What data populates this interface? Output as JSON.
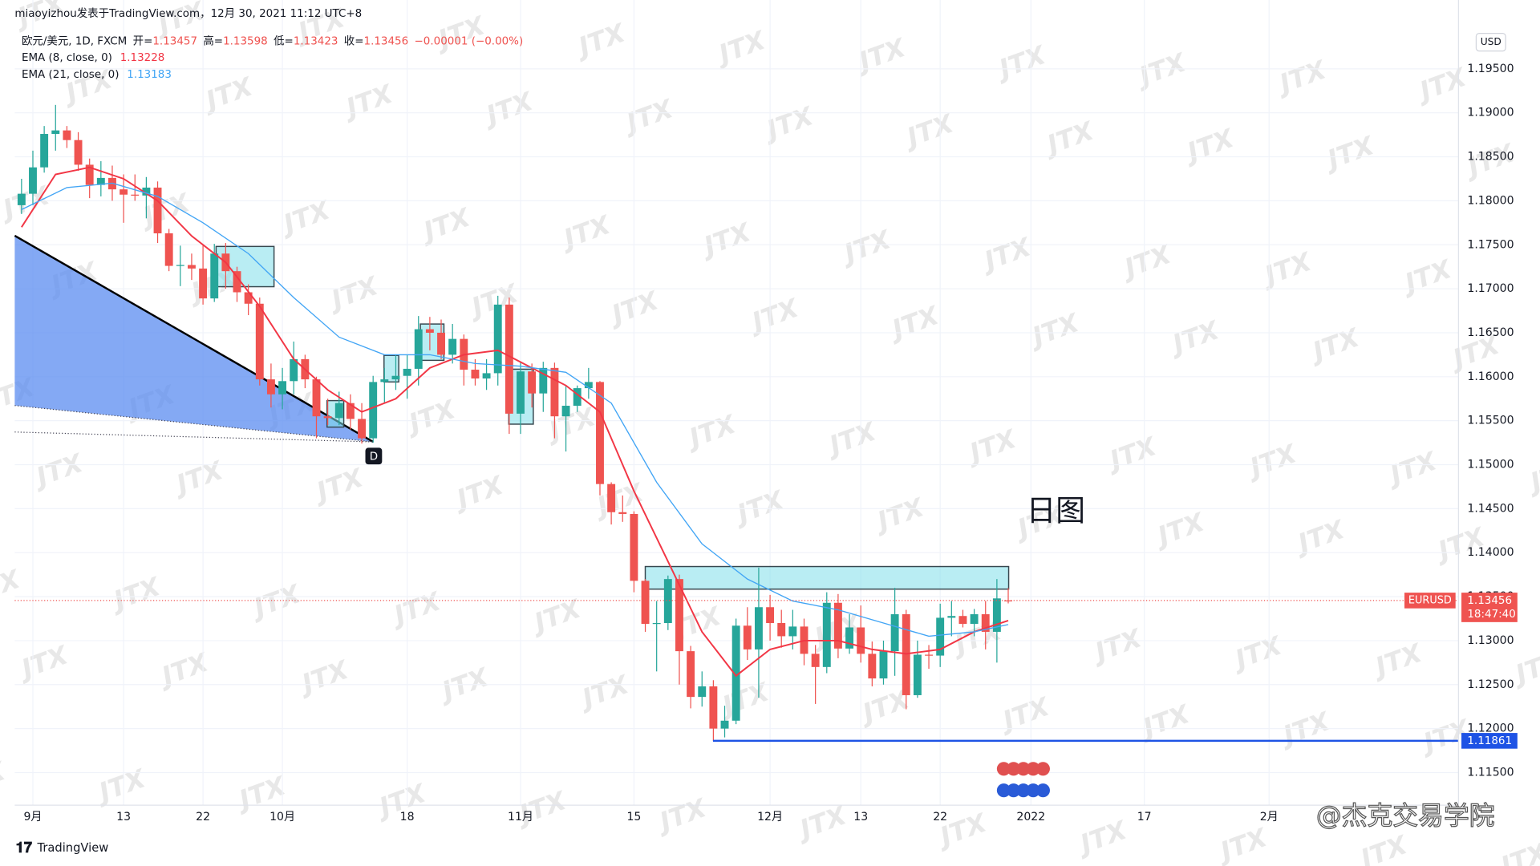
{
  "header": {
    "attribution": "miaoyizhou发表于TradingView.com，12月 30, 2021 11:12 UTC+8",
    "brand": "TradingView",
    "watermark": "JTX",
    "signature": "@杰克交易学院",
    "annotation": "日图",
    "marker": "D",
    "currency": "USD"
  },
  "chart_data": {
    "type": "candlestick",
    "symbol": "EURUSD",
    "legend": {
      "title": "欧元/美元, 1D, FXCM",
      "open_label": "开=",
      "high_label": "高=",
      "low_label": "低=",
      "close_label": "收=",
      "change": "−0.00001 (−0.00%)"
    },
    "countdown": "18:47:40",
    "up_color": "#26a69a",
    "down_color": "#ef5350",
    "x": [
      0,
      1,
      2,
      3,
      4,
      5,
      6,
      7,
      8,
      9,
      10,
      11,
      12,
      13,
      14,
      15,
      16,
      17,
      18,
      19,
      20,
      21,
      22,
      23,
      24,
      25,
      26,
      27,
      28,
      29,
      30,
      31,
      32,
      33,
      34,
      35,
      36,
      37,
      38,
      39,
      40,
      41,
      42,
      43,
      44,
      45,
      46,
      47,
      48,
      49,
      50,
      51,
      52,
      53,
      54,
      55,
      56,
      57,
      58,
      59,
      60,
      61,
      62,
      63,
      64,
      65,
      66,
      67,
      68,
      69,
      70,
      71,
      72,
      73,
      74,
      75,
      76,
      77,
      78,
      79,
      80,
      81,
      82,
      83,
      84,
      85,
      86,
      87
    ],
    "open": [
      1.1795,
      1.1808,
      1.1838,
      1.1876,
      1.188,
      1.1869,
      1.1841,
      1.1818,
      1.1826,
      1.1813,
      1.1807,
      1.1806,
      1.1815,
      1.1763,
      1.1726,
      1.1727,
      1.1723,
      1.1689,
      1.174,
      1.172,
      1.1696,
      1.1683,
      1.1597,
      1.158,
      1.1595,
      1.162,
      1.1597,
      1.1555,
      1.1553,
      1.157,
      1.1552,
      1.153,
      1.1594,
      1.1597,
      1.1601,
      1.1609,
      1.1654,
      1.165,
      1.1625,
      1.1643,
      1.1608,
      1.1598,
      1.1604,
      1.1682,
      1.1558,
      1.1606,
      1.1581,
      1.161,
      1.1555,
      1.1567,
      1.1587,
      1.1594,
      1.1478,
      1.1446,
      1.1444,
      1.1368,
      1.1319,
      1.132,
      1.137,
      1.1288,
      1.1236,
      1.1248,
      1.12,
      1.1209,
      1.1317,
      1.129,
      1.1338,
      1.132,
      1.1305,
      1.1316,
      1.1285,
      1.127,
      1.1343,
      1.1291,
      1.1315,
      1.1285,
      1.1257,
      1.1288,
      1.133,
      1.1238,
      1.1284,
      1.1283,
      1.1326,
      1.1328,
      1.1319,
      1.133,
      1.131,
      1.13457
    ],
    "high": [
      1.1825,
      1.1857,
      1.1885,
      1.1909,
      1.1885,
      1.1878,
      1.1848,
      1.1845,
      1.184,
      1.183,
      1.183,
      1.1827,
      1.1822,
      1.1768,
      1.1749,
      1.174,
      1.175,
      1.1751,
      1.1752,
      1.1725,
      1.1705,
      1.169,
      1.1615,
      1.161,
      1.164,
      1.1625,
      1.16,
      1.1575,
      1.1583,
      1.158,
      1.157,
      1.1601,
      1.161,
      1.1625,
      1.1625,
      1.1669,
      1.1668,
      1.1665,
      1.166,
      1.1648,
      1.162,
      1.162,
      1.1692,
      1.169,
      1.1617,
      1.1615,
      1.1617,
      1.1616,
      1.159,
      1.159,
      1.161,
      1.1595,
      1.148,
      1.1465,
      1.1447,
      1.137,
      1.1345,
      1.1374,
      1.1375,
      1.1294,
      1.1265,
      1.1255,
      1.1226,
      1.1325,
      1.1338,
      1.1383,
      1.1352,
      1.1335,
      1.1335,
      1.1325,
      1.1295,
      1.1355,
      1.1353,
      1.133,
      1.134,
      1.1299,
      1.13,
      1.136,
      1.1335,
      1.13,
      1.1295,
      1.1342,
      1.1345,
      1.1335,
      1.1336,
      1.1345,
      1.137,
      1.13598
    ],
    "low": [
      1.1785,
      1.1795,
      1.1832,
      1.1857,
      1.186,
      1.1834,
      1.1803,
      1.1805,
      1.18,
      1.1775,
      1.18,
      1.178,
      1.1752,
      1.172,
      1.1703,
      1.171,
      1.1682,
      1.1685,
      1.17,
      1.1685,
      1.167,
      1.159,
      1.1565,
      1.1563,
      1.158,
      1.1587,
      1.153,
      1.1545,
      1.1545,
      1.154,
      1.1524,
      1.1525,
      1.157,
      1.1585,
      1.1575,
      1.159,
      1.163,
      1.162,
      1.1615,
      1.159,
      1.159,
      1.1585,
      1.159,
      1.1535,
      1.1535,
      1.1565,
      1.156,
      1.153,
      1.1515,
      1.156,
      1.1575,
      1.1465,
      1.1432,
      1.1435,
      1.1355,
      1.131,
      1.1265,
      1.1312,
      1.125,
      1.1223,
      1.1225,
      1.1186,
      1.119,
      1.1205,
      1.1278,
      1.1235,
      1.13,
      1.1292,
      1.129,
      1.1272,
      1.1228,
      1.1263,
      1.128,
      1.1285,
      1.1275,
      1.1248,
      1.125,
      1.126,
      1.1222,
      1.1235,
      1.1268,
      1.127,
      1.1305,
      1.1315,
      1.1305,
      1.129,
      1.1275,
      1.13423
    ],
    "close": [
      1.1808,
      1.1838,
      1.1876,
      1.188,
      1.1869,
      1.1841,
      1.1818,
      1.1826,
      1.1813,
      1.1807,
      1.1806,
      1.1815,
      1.1763,
      1.1726,
      1.1727,
      1.1723,
      1.1689,
      1.174,
      1.172,
      1.1696,
      1.1683,
      1.1597,
      1.158,
      1.1595,
      1.162,
      1.1597,
      1.1555,
      1.1553,
      1.157,
      1.1552,
      1.153,
      1.1594,
      1.1597,
      1.1601,
      1.1609,
      1.1654,
      1.165,
      1.1625,
      1.1643,
      1.1608,
      1.1598,
      1.1604,
      1.1682,
      1.1558,
      1.1606,
      1.1581,
      1.161,
      1.1555,
      1.1567,
      1.1587,
      1.1594,
      1.1478,
      1.1446,
      1.1444,
      1.1368,
      1.1319,
      1.132,
      1.137,
      1.1288,
      1.1236,
      1.1248,
      1.12,
      1.1209,
      1.1317,
      1.129,
      1.1338,
      1.132,
      1.1305,
      1.1316,
      1.1285,
      1.127,
      1.1343,
      1.1291,
      1.1315,
      1.1285,
      1.1257,
      1.1288,
      1.133,
      1.1238,
      1.1284,
      1.1283,
      1.1326,
      1.1328,
      1.1319,
      1.133,
      1.131,
      1.1348,
      1.13456
    ],
    "series": [
      {
        "name": "EMA (8, close, 0)",
        "color": "#f23645",
        "x": [
          0,
          3,
          6,
          9,
          12,
          15,
          18,
          21,
          24,
          27,
          30,
          33,
          36,
          39,
          42,
          45,
          48,
          51,
          54,
          57,
          60,
          63,
          66,
          69,
          72,
          75,
          78,
          81,
          84,
          87
        ],
        "values": [
          1.177,
          1.183,
          1.1838,
          1.1825,
          1.18,
          1.176,
          1.173,
          1.168,
          1.162,
          1.1585,
          1.156,
          1.1575,
          1.161,
          1.1625,
          1.163,
          1.161,
          1.159,
          1.156,
          1.147,
          1.139,
          1.131,
          1.126,
          1.129,
          1.13,
          1.13,
          1.129,
          1.1285,
          1.129,
          1.131,
          1.13228
        ]
      },
      {
        "name": "EMA (21, close, 0)",
        "color": "#42a5f5",
        "x": [
          0,
          4,
          8,
          12,
          16,
          20,
          24,
          28,
          32,
          36,
          40,
          44,
          48,
          52,
          56,
          60,
          64,
          68,
          72,
          76,
          80,
          84,
          87
        ],
        "values": [
          1.179,
          1.1815,
          1.182,
          1.1805,
          1.1775,
          1.174,
          1.169,
          1.1645,
          1.1625,
          1.1625,
          1.1615,
          1.1612,
          1.1605,
          1.157,
          1.148,
          1.141,
          1.137,
          1.1345,
          1.1335,
          1.132,
          1.1305,
          1.131,
          1.13183
        ]
      }
    ],
    "support": {
      "value": 1.11861,
      "color": "#1e53e5"
    },
    "xlim": [
      -0.6,
      126.7
    ],
    "xticks": [
      {
        "value": 1,
        "label": "9月"
      },
      {
        "value": 9,
        "label": "13"
      },
      {
        "value": 16,
        "label": "22"
      },
      {
        "value": 23,
        "label": "10月"
      },
      {
        "value": 34,
        "label": "18"
      },
      {
        "value": 44,
        "label": "11月"
      },
      {
        "value": 54,
        "label": "15"
      },
      {
        "value": 66,
        "label": "12月"
      },
      {
        "value": 74,
        "label": "13"
      },
      {
        "value": 81,
        "label": "22"
      },
      {
        "value": 89,
        "label": "2022"
      },
      {
        "value": 99,
        "label": "17"
      },
      {
        "value": 110,
        "label": "2月"
      }
    ],
    "ylim": [
      1.1113,
      1.1997
    ],
    "yticks": [
      {
        "value": 1.115,
        "label": "1.11500"
      },
      {
        "value": 1.12,
        "label": "1.12000"
      },
      {
        "value": 1.125,
        "label": "1.12500"
      },
      {
        "value": 1.13,
        "label": "1.13000"
      },
      {
        "value": 1.135,
        "label": "1.13500"
      },
      {
        "value": 1.14,
        "label": "1.14000"
      },
      {
        "value": 1.145,
        "label": "1.14500"
      },
      {
        "value": 1.15,
        "label": "1.15000"
      },
      {
        "value": 1.155,
        "label": "1.15500"
      },
      {
        "value": 1.16,
        "label": "1.16000"
      },
      {
        "value": 1.165,
        "label": "1.16500"
      },
      {
        "value": 1.17,
        "label": "1.17000"
      },
      {
        "value": 1.175,
        "label": "1.17500"
      },
      {
        "value": 1.18,
        "label": "1.18000"
      },
      {
        "value": 1.185,
        "label": "1.18500"
      },
      {
        "value": 1.19,
        "label": "1.19000"
      },
      {
        "value": 1.195,
        "label": "1.19500"
      }
    ],
    "grid": true
  }
}
